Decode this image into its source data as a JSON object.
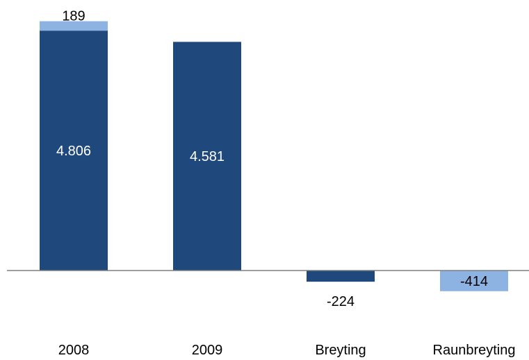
{
  "chart_data": {
    "type": "bar",
    "stacked": true,
    "categories": [
      "2008",
      "2009",
      "Breyting",
      "Raunbreyting"
    ],
    "series": [
      {
        "color": "#1f497d",
        "values": [
          4806,
          4581,
          -224,
          0
        ],
        "labels": [
          "4.806",
          "4.581",
          "-224",
          ""
        ]
      },
      {
        "color": "#8db3e2",
        "values": [
          189,
          0,
          0,
          -414
        ],
        "labels": [
          "189",
          "",
          "",
          "-414"
        ]
      }
    ],
    "axis_baseline": 0,
    "grid": false,
    "legend": "none",
    "colors": {
      "dark": "#1f497d",
      "light": "#8db3e2",
      "axis": "#7f7f7f",
      "label_light": "#ffffff",
      "label_dark": "#000000"
    }
  }
}
